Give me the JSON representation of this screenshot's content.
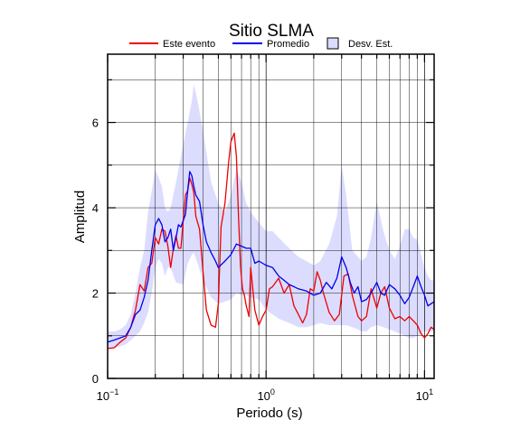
{
  "chart_data": {
    "type": "line",
    "title": "Sitio SLMA",
    "xlabel": "Periodo (s)",
    "ylabel": "Amplitud",
    "xscale": "log",
    "xlim": [
      0.1,
      11.5
    ],
    "ylim": [
      0,
      7.6
    ],
    "x_ticks": [
      {
        "value": 0.1,
        "base": "10",
        "exp": "−1"
      },
      {
        "value": 1,
        "base": "10",
        "exp": "0"
      },
      {
        "value": 10,
        "base": "10",
        "exp": "1"
      }
    ],
    "y_ticks": [
      {
        "value": 0,
        "label": "0"
      },
      {
        "value": 2,
        "label": "2"
      },
      {
        "value": 4,
        "label": "4"
      },
      {
        "value": 6,
        "label": "6"
      }
    ],
    "y_minor_ticks": [
      1,
      3,
      5,
      7
    ],
    "grid": true,
    "legend_position": "top",
    "series": [
      {
        "name": "Este evento",
        "kind": "line",
        "color": "#ee0000",
        "x": [
          0.1,
          0.11,
          0.12,
          0.13,
          0.14,
          0.15,
          0.16,
          0.17,
          0.18,
          0.19,
          0.2,
          0.21,
          0.22,
          0.23,
          0.24,
          0.25,
          0.26,
          0.27,
          0.28,
          0.29,
          0.3,
          0.31,
          0.32,
          0.33,
          0.34,
          0.35,
          0.36,
          0.38,
          0.4,
          0.42,
          0.45,
          0.48,
          0.5,
          0.52,
          0.55,
          0.58,
          0.6,
          0.63,
          0.65,
          0.67,
          0.69,
          0.71,
          0.73,
          0.75,
          0.78,
          0.8,
          0.85,
          0.9,
          0.95,
          1.0,
          1.05,
          1.1,
          1.2,
          1.3,
          1.4,
          1.5,
          1.6,
          1.7,
          1.8,
          1.9,
          2.0,
          2.1,
          2.2,
          2.3,
          2.5,
          2.7,
          2.9,
          3.1,
          3.3,
          3.5,
          3.8,
          4.0,
          4.3,
          4.6,
          5.0,
          5.3,
          5.6,
          6.0,
          6.5,
          7.0,
          7.5,
          8.0,
          8.5,
          9.0,
          9.5,
          10.0,
          10.5,
          11.0,
          11.5
        ],
        "y": [
          0.7,
          0.72,
          0.85,
          0.95,
          1.2,
          1.6,
          2.2,
          2.05,
          2.6,
          2.7,
          3.3,
          3.15,
          3.5,
          3.45,
          3.1,
          2.6,
          3.05,
          3.35,
          3.05,
          3.05,
          3.7,
          4.3,
          4.4,
          4.7,
          4.55,
          4.35,
          3.8,
          3.5,
          2.5,
          1.6,
          1.25,
          1.2,
          1.75,
          3.55,
          4.1,
          5.05,
          5.55,
          5.75,
          5.2,
          3.8,
          2.6,
          2.1,
          1.95,
          1.7,
          1.45,
          2.6,
          1.6,
          1.25,
          1.45,
          1.6,
          2.1,
          2.15,
          2.35,
          2.0,
          2.2,
          1.7,
          1.5,
          1.3,
          1.5,
          2.1,
          2.05,
          2.5,
          2.3,
          2.0,
          1.55,
          1.35,
          1.5,
          2.4,
          2.45,
          1.95,
          1.45,
          1.35,
          1.45,
          2.1,
          1.65,
          2.0,
          2.15,
          1.65,
          1.4,
          1.45,
          1.35,
          1.45,
          1.35,
          1.25,
          1.05,
          0.95,
          1.05,
          1.2,
          1.15
        ]
      },
      {
        "name": "Promedio",
        "kind": "line",
        "color": "#0000ee",
        "x": [
          0.1,
          0.11,
          0.12,
          0.13,
          0.14,
          0.15,
          0.16,
          0.17,
          0.18,
          0.19,
          0.2,
          0.21,
          0.22,
          0.23,
          0.24,
          0.25,
          0.26,
          0.27,
          0.28,
          0.29,
          0.3,
          0.31,
          0.32,
          0.33,
          0.34,
          0.35,
          0.36,
          0.38,
          0.4,
          0.42,
          0.45,
          0.48,
          0.5,
          0.55,
          0.6,
          0.65,
          0.7,
          0.75,
          0.8,
          0.85,
          0.9,
          0.95,
          1.0,
          1.1,
          1.2,
          1.3,
          1.4,
          1.5,
          1.6,
          1.8,
          2.0,
          2.2,
          2.4,
          2.6,
          2.8,
          3.0,
          3.2,
          3.4,
          3.6,
          3.8,
          4.0,
          4.3,
          4.6,
          5.0,
          5.3,
          5.6,
          6.0,
          6.5,
          7.0,
          7.5,
          8.0,
          8.5,
          9.0,
          9.5,
          10.0,
          10.5,
          11.0,
          11.5
        ],
        "y": [
          0.85,
          0.9,
          0.95,
          1.0,
          1.2,
          1.5,
          1.6,
          1.9,
          2.3,
          3.0,
          3.6,
          3.75,
          3.6,
          3.2,
          3.3,
          3.5,
          3.0,
          3.3,
          3.6,
          3.55,
          3.7,
          3.85,
          4.4,
          4.85,
          4.75,
          4.5,
          4.3,
          4.15,
          3.6,
          3.2,
          2.95,
          2.75,
          2.6,
          2.75,
          2.9,
          3.15,
          3.1,
          3.05,
          3.05,
          2.7,
          2.75,
          2.7,
          2.65,
          2.6,
          2.4,
          2.3,
          2.2,
          2.15,
          2.1,
          2.05,
          1.95,
          2.0,
          2.25,
          2.1,
          2.35,
          2.85,
          2.6,
          2.25,
          2.0,
          2.15,
          1.8,
          1.85,
          2.0,
          2.25,
          2.0,
          1.95,
          2.2,
          2.1,
          1.95,
          1.75,
          1.9,
          2.15,
          2.4,
          2.15,
          1.95,
          1.7,
          1.75,
          1.8
        ]
      },
      {
        "name": "Desv. Est.",
        "kind": "band",
        "color": "#dcdcff",
        "x": [
          0.1,
          0.11,
          0.12,
          0.13,
          0.14,
          0.15,
          0.16,
          0.17,
          0.18,
          0.19,
          0.2,
          0.21,
          0.22,
          0.23,
          0.24,
          0.25,
          0.27,
          0.3,
          0.32,
          0.34,
          0.35,
          0.37,
          0.4,
          0.45,
          0.5,
          0.55,
          0.6,
          0.65,
          0.7,
          0.75,
          0.8,
          0.9,
          1.0,
          1.1,
          1.2,
          1.4,
          1.6,
          1.8,
          2.0,
          2.2,
          2.5,
          2.8,
          3.0,
          3.2,
          3.5,
          3.8,
          4.0,
          4.3,
          4.6,
          5.0,
          5.5,
          6.0,
          6.5,
          7.0,
          7.5,
          8.0,
          8.5,
          9.0,
          9.5,
          10.0,
          10.5,
          11.0,
          11.5
        ],
        "upper": [
          1.1,
          1.1,
          1.15,
          1.25,
          1.5,
          2.0,
          2.6,
          3.0,
          3.9,
          4.4,
          4.9,
          4.7,
          4.5,
          4.0,
          3.9,
          4.0,
          4.6,
          5.5,
          6.0,
          6.5,
          6.9,
          6.5,
          5.8,
          4.6,
          4.1,
          3.9,
          4.3,
          4.9,
          4.6,
          4.1,
          3.9,
          3.65,
          3.45,
          3.45,
          3.3,
          3.05,
          2.85,
          2.75,
          2.65,
          2.75,
          3.15,
          3.8,
          5.0,
          4.3,
          3.0,
          2.85,
          2.75,
          2.85,
          3.3,
          4.15,
          3.45,
          3.0,
          2.8,
          3.1,
          3.5,
          3.5,
          3.3,
          3.25,
          2.9,
          2.6,
          2.4,
          2.3,
          2.3
        ],
        "lower": [
          0.7,
          0.72,
          0.75,
          0.8,
          0.9,
          1.0,
          1.1,
          1.3,
          1.55,
          2.0,
          2.6,
          2.8,
          2.7,
          2.4,
          2.6,
          2.6,
          2.25,
          2.2,
          2.7,
          2.9,
          2.95,
          2.7,
          2.3,
          1.9,
          1.75,
          1.8,
          1.85,
          2.0,
          1.95,
          1.95,
          1.9,
          1.85,
          1.6,
          1.5,
          1.4,
          1.3,
          1.2,
          1.2,
          1.25,
          1.3,
          1.25,
          1.25,
          1.25,
          1.25,
          1.2,
          1.15,
          1.1,
          1.1,
          1.2,
          1.25,
          1.2,
          1.15,
          1.1,
          1.05,
          1.0,
          0.95,
          0.95,
          1.0,
          1.05,
          1.1,
          1.1,
          1.1,
          1.1
        ]
      }
    ]
  }
}
